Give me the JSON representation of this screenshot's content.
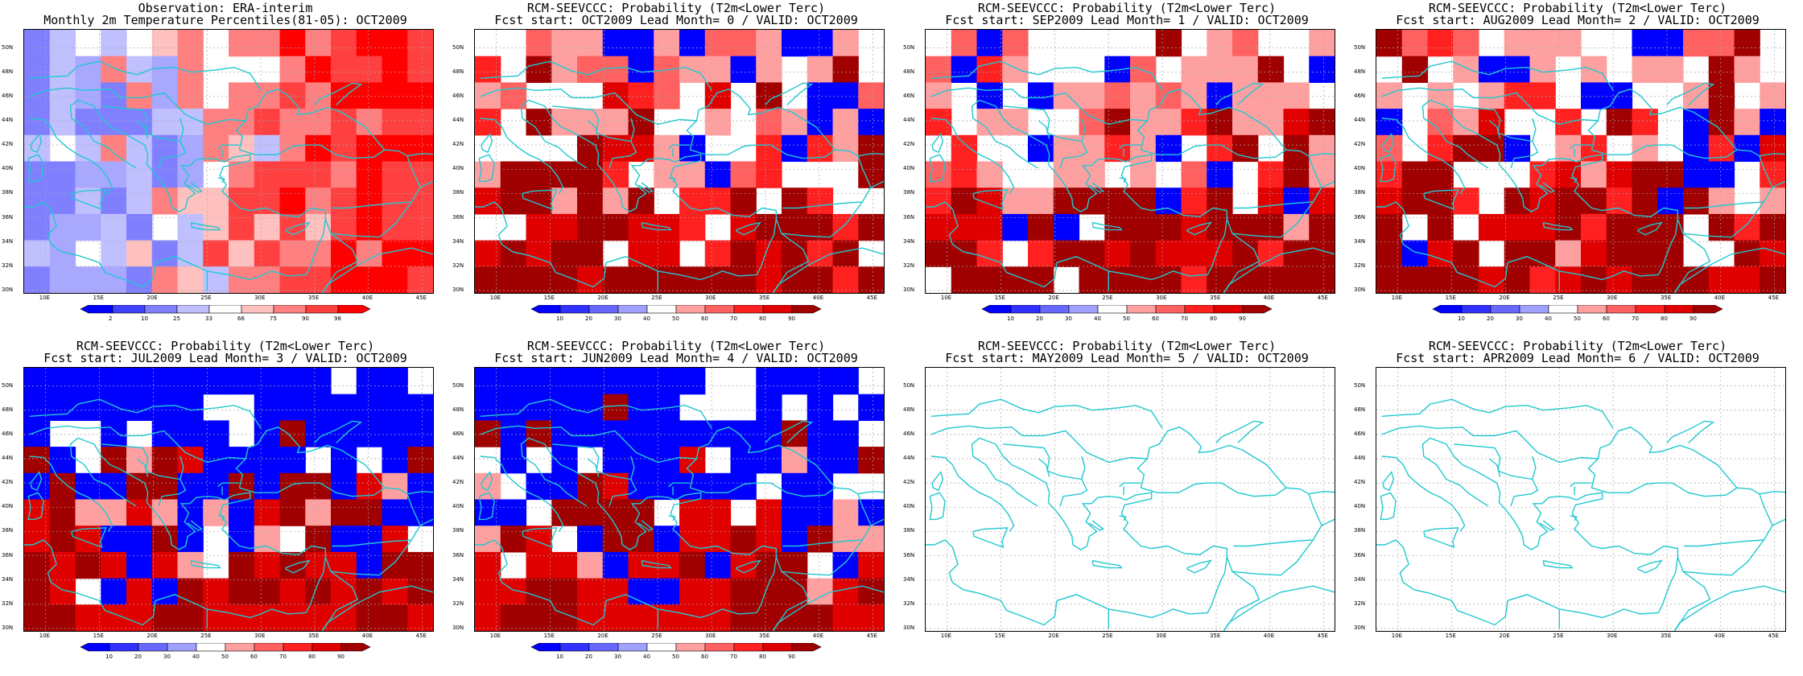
{
  "panels": [
    {
      "title1": "Observation: ERA-interim",
      "title2": "Monthly 2m Temperature Percentiles(81-05): OCT2009",
      "type": "obs",
      "seed": 3
    },
    {
      "title1": "RCM-SEEVCCC: Probability (T2m<Lower Terc)",
      "title2": "Fcst start: OCT2009  Lead Month= 0 / VALID: OCT2009",
      "type": "prob",
      "seed": 11
    },
    {
      "title1": "RCM-SEEVCCC: Probability (T2m<Lower Terc)",
      "title2": "Fcst start: SEP2009  Lead Month= 1 / VALID: OCT2009",
      "type": "prob",
      "seed": 23
    },
    {
      "title1": "RCM-SEEVCCC: Probability (T2m<Lower Terc)",
      "title2": "Fcst start: AUG2009  Lead Month= 2 / VALID: OCT2009",
      "type": "prob",
      "seed": 37
    },
    {
      "title1": "RCM-SEEVCCC: Probability (T2m<Lower Terc)",
      "title2": "Fcst start: JUL2009  Lead Month= 3 / VALID: OCT2009",
      "type": "prob2",
      "seed": 41
    },
    {
      "title1": "RCM-SEEVCCC: Probability (T2m<Lower Terc)",
      "title2": "Fcst start: JUN2009  Lead Month= 4 / VALID: OCT2009",
      "type": "prob2",
      "seed": 53
    },
    {
      "title1": "RCM-SEEVCCC: Probability (T2m<Lower Terc)",
      "title2": "Fcst start: MAY2009  Lead Month= 5 / VALID: OCT2009",
      "type": "empty",
      "seed": 0
    },
    {
      "title1": "RCM-SEEVCCC: Probability (T2m<Lower Terc)",
      "title2": "Fcst start: APR2009  Lead Month= 6 / VALID: OCT2009",
      "type": "empty",
      "seed": 0
    }
  ],
  "lat_labels": [
    "50N",
    "48N",
    "46N",
    "44N",
    "42N",
    "40N",
    "38N",
    "36N",
    "34N",
    "32N",
    "30N"
  ],
  "lon_labels": [
    "10E",
    "15E",
    "20E",
    "25E",
    "30E",
    "35E",
    "40E",
    "45E"
  ],
  "colorbar_obs": {
    "ticks": [
      "2",
      "10",
      "25",
      "33",
      "66",
      "75",
      "90",
      "98"
    ],
    "colors": [
      "#0000ff",
      "#4040ff",
      "#8080ff",
      "#c0c0ff",
      "#ffffff",
      "#ffc0c0",
      "#ff8080",
      "#ff4040",
      "#ff0000"
    ]
  },
  "colorbar_prob": {
    "ticks": [
      "10",
      "20",
      "30",
      "40",
      "50",
      "60",
      "70",
      "80",
      "90"
    ],
    "colors": [
      "#0000ff",
      "#3030ff",
      "#6868ff",
      "#a0a0ff",
      "#ffffff",
      "#ffa0a0",
      "#ff6060",
      "#ff2020",
      "#e00000",
      "#a00000"
    ]
  },
  "colors": {
    "coast": "#20c8d0",
    "grid": "#a8a8a8"
  }
}
